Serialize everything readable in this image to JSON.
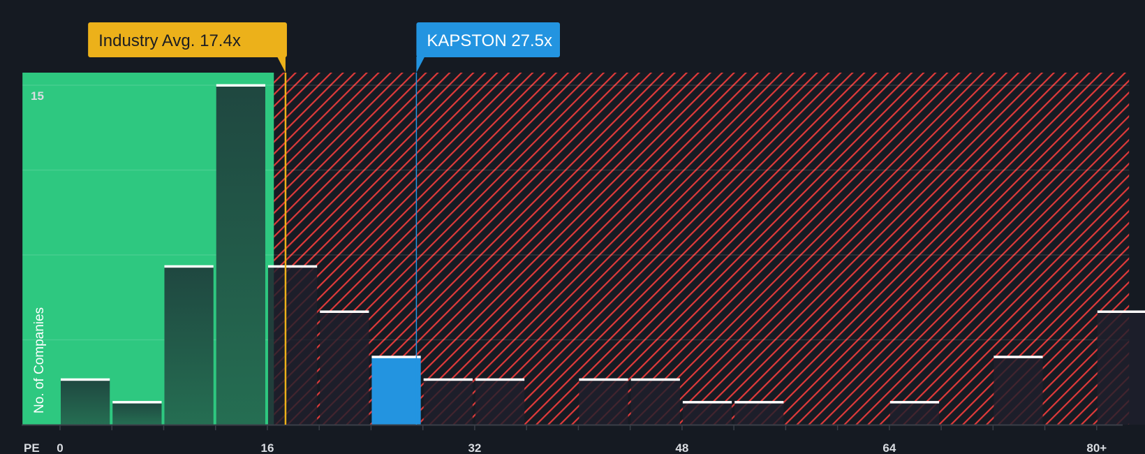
{
  "chart_data": {
    "type": "bar",
    "title": "",
    "xlabel": "PE",
    "ylabel": "No. of Companies",
    "bin_width": 4,
    "categories": [
      "0-4",
      "4-8",
      "8-12",
      "12-16",
      "16-20",
      "20-24",
      "24-28",
      "28-32",
      "32-36",
      "36-40",
      "40-44",
      "44-48",
      "48-52",
      "52-56",
      "56-60",
      "60-64",
      "64-68",
      "68-72",
      "72-76",
      "76-80",
      "80+"
    ],
    "values": [
      2,
      1,
      7,
      15,
      7,
      5,
      3,
      2,
      2,
      0,
      2,
      2,
      1,
      1,
      0,
      0,
      1,
      0,
      3,
      0,
      5
    ],
    "highlight_index": 6,
    "xticks": [
      "0",
      "16",
      "32",
      "48",
      "64",
      "80+"
    ],
    "xtick_values": [
      0,
      16,
      32,
      48,
      64,
      80
    ],
    "ytick_label": "15",
    "ylim": [
      0,
      15.5
    ],
    "xlim": [
      -2.9,
      82.5
    ],
    "fair_range": [
      -2.9,
      16.5
    ],
    "industry_avg": {
      "label": "Industry Avg. 17.4x",
      "value": 17.4
    },
    "company": {
      "label": "KAPSTON 27.5x",
      "value": 27.5
    }
  },
  "colors": {
    "background": "#151a22",
    "green_zone": "#2ec880",
    "hatch": "#e03a3a",
    "industry": "#ecb11a",
    "company": "#2394e0"
  }
}
